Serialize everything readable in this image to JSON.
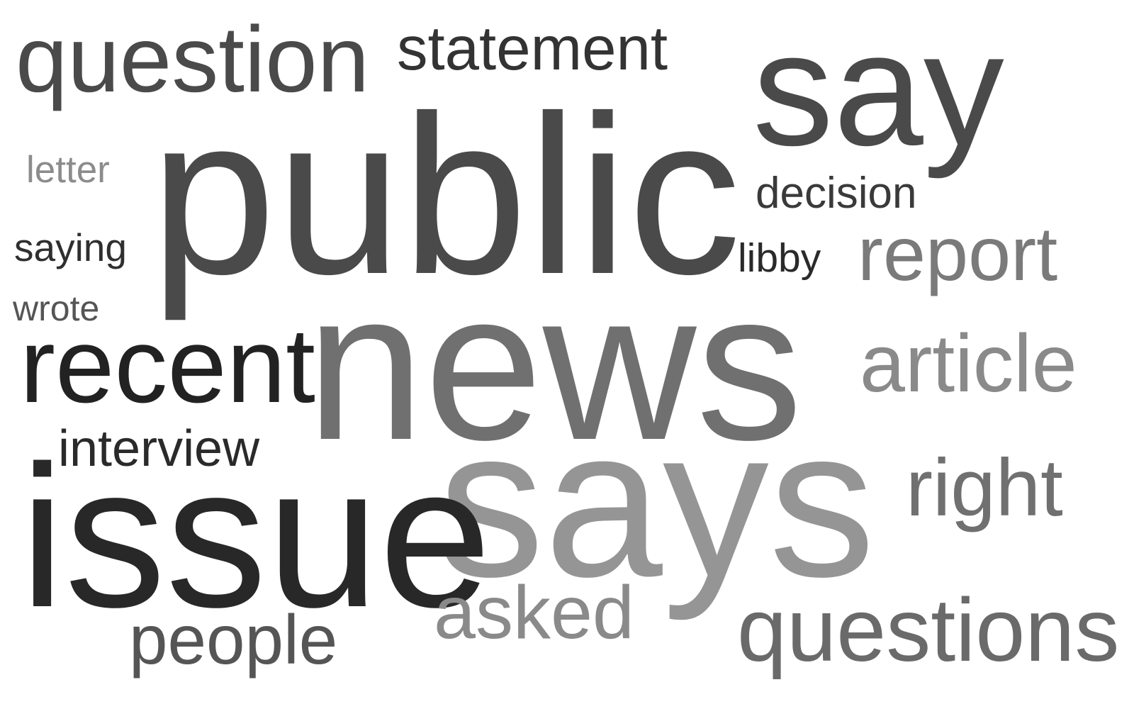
{
  "cloud": {
    "words": [
      {
        "text": "question",
        "color": "#4a4a4a"
      },
      {
        "text": "statement",
        "color": "#333333"
      },
      {
        "text": "say",
        "color": "#4a4a4a"
      },
      {
        "text": "letter",
        "color": "#8c8c8c"
      },
      {
        "text": "public",
        "color": "#4a4a4a"
      },
      {
        "text": "decision",
        "color": "#3a3a3a"
      },
      {
        "text": "saying",
        "color": "#2f2f2f"
      },
      {
        "text": "libby",
        "color": "#2a2a2a"
      },
      {
        "text": "report",
        "color": "#7a7a7a"
      },
      {
        "text": "wrote",
        "color": "#555555"
      },
      {
        "text": "news",
        "color": "#707070"
      },
      {
        "text": "recent",
        "color": "#222222"
      },
      {
        "text": "article",
        "color": "#8a8a8a"
      },
      {
        "text": "interview",
        "color": "#2a2a2a"
      },
      {
        "text": "says",
        "color": "#959595"
      },
      {
        "text": "right",
        "color": "#707070"
      },
      {
        "text": "issue",
        "color": "#282828"
      },
      {
        "text": "asked",
        "color": "#8a8a8a"
      },
      {
        "text": "people",
        "color": "#555555"
      },
      {
        "text": "questions",
        "color": "#6a6a6a"
      }
    ]
  }
}
